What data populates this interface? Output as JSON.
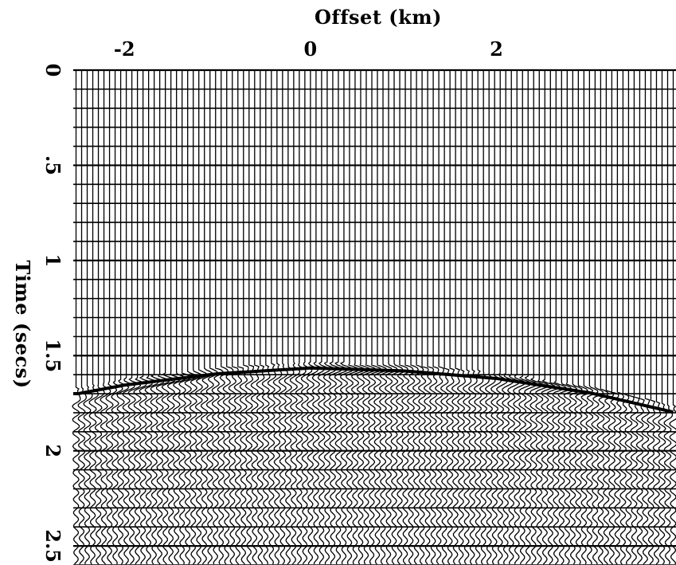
{
  "chart_data": {
    "type": "seismic-wiggle",
    "title": "",
    "xlabel": "Offset (km)",
    "ylabel": "Time (secs)",
    "x_ticks": [
      {
        "value": -2,
        "label": "-2"
      },
      {
        "value": 0,
        "label": "0"
      },
      {
        "value": 2,
        "label": "2"
      }
    ],
    "y_ticks": [
      {
        "value": 0,
        "label": "0"
      },
      {
        "value": 0.5,
        "label": ".5"
      },
      {
        "value": 1,
        "label": "1"
      },
      {
        "value": 1.5,
        "label": "1.5"
      },
      {
        "value": 2,
        "label": "2"
      },
      {
        "value": 2.5,
        "label": "2.5"
      }
    ],
    "xlim": [
      -2.55,
      3.93
    ],
    "ylim": [
      0,
      2.6
    ],
    "y_inverted": true,
    "trace_spacing_km": 0.06,
    "time_gridline_interval_s": 0.1,
    "reflector": {
      "apex_offset_km": 0,
      "apex_time_s": 1.565,
      "points": [
        {
          "x": -2.5,
          "t": 1.7
        },
        {
          "x": -2.0,
          "t": 1.655
        },
        {
          "x": -1.0,
          "t": 1.595
        },
        {
          "x": 0.0,
          "t": 1.565
        },
        {
          "x": 1.0,
          "t": 1.58
        },
        {
          "x": 2.0,
          "t": 1.62
        },
        {
          "x": 3.0,
          "t": 1.695
        },
        {
          "x": 3.93,
          "t": 1.8
        }
      ]
    },
    "colors": {
      "trace": "#000000",
      "background": "#ffffff"
    }
  }
}
